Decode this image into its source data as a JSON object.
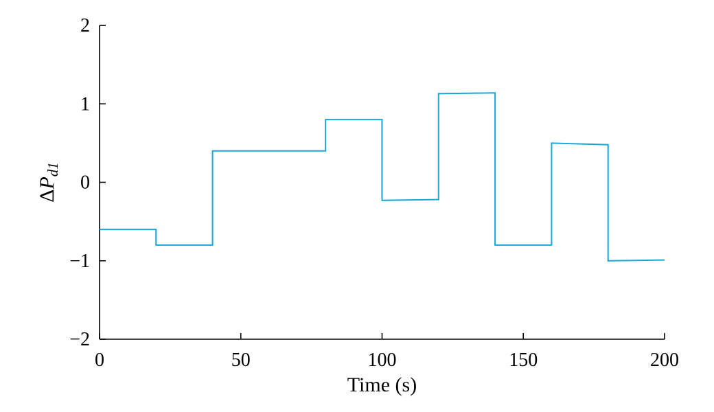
{
  "chart_data": {
    "type": "line",
    "xlabel": "Time (s)",
    "ylabel": {
      "delta": "Δ",
      "symbol": "P",
      "subscript": "d1"
    },
    "xlim": [
      0,
      200
    ],
    "ylim": [
      -2,
      2
    ],
    "xticks": [
      0,
      50,
      100,
      150,
      200
    ],
    "yticks": [
      -2,
      -1,
      0,
      1,
      2
    ],
    "ytick_labels": [
      "−2",
      "−1",
      "0",
      "1",
      "2"
    ],
    "grid": false,
    "legend": "none",
    "series": [
      {
        "color": "#1aa7d6",
        "x": [
          0,
          20,
          20,
          40,
          40,
          80,
          80,
          100,
          100,
          120,
          120,
          140,
          140,
          160,
          160,
          180,
          180,
          200
        ],
        "y": [
          -0.6,
          -0.6,
          -0.8,
          -0.8,
          0.4,
          0.4,
          0.8,
          0.8,
          -0.23,
          -0.22,
          1.13,
          1.14,
          -0.8,
          -0.8,
          0.5,
          0.48,
          -1.0,
          -0.99
        ]
      }
    ]
  }
}
